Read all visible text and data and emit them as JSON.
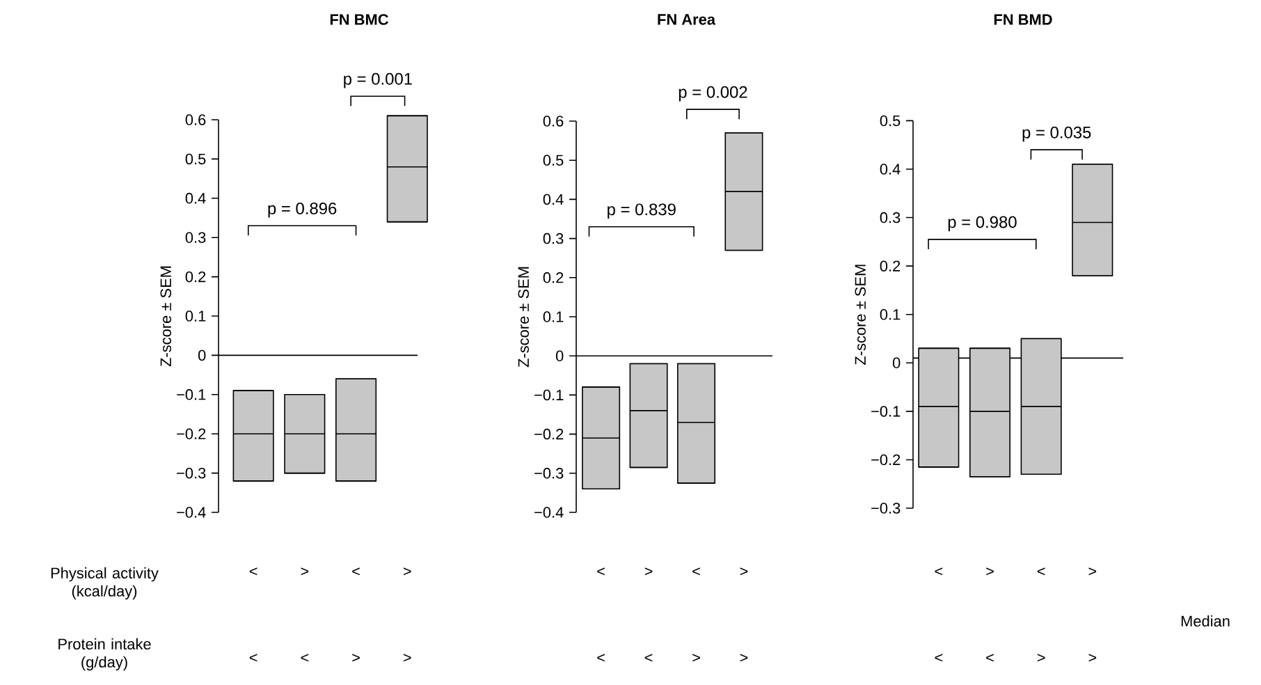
{
  "chart_data": [
    {
      "type": "box",
      "title": "FN BMC",
      "ylabel": "Z-score ± SEM",
      "categories": [
        "<",
        ">",
        "<",
        ">"
      ],
      "boxes": [
        {
          "low": -0.32,
          "q1": -0.32,
          "median": -0.2,
          "q3": -0.09,
          "high": -0.09
        },
        {
          "low": -0.3,
          "q1": -0.3,
          "median": -0.2,
          "q3": -0.1,
          "high": -0.1
        },
        {
          "low": -0.32,
          "q1": -0.32,
          "median": -0.2,
          "q3": -0.06,
          "high": -0.06
        },
        {
          "low": 0.34,
          "q1": 0.34,
          "median": 0.48,
          "q3": 0.61,
          "high": 0.61
        }
      ],
      "ylim": [
        -0.4,
        0.6
      ],
      "yticks": [
        {
          "value": -0.4,
          "label": "−0.4"
        },
        {
          "value": -0.3,
          "label": "−0.3"
        },
        {
          "value": -0.2,
          "label": "−0.2"
        },
        {
          "value": -0.1,
          "label": "−0.1"
        },
        0,
        0.1,
        0.2,
        0.3,
        0.4,
        0.5,
        0.6
      ],
      "ref_lines": [
        {
          "axis": "y",
          "value": 0
        }
      ],
      "annotations": [
        "p = 0.896",
        "p = 0.001",
        "<",
        "<",
        ">",
        ">",
        "Physical activity (kcal/day)",
        "Protein intake (g/day)"
      ]
    },
    {
      "type": "box",
      "title": "FN Area",
      "ylabel": "Z-score ± SEM",
      "categories": [
        "<",
        ">",
        "<",
        ">"
      ],
      "boxes": [
        {
          "low": -0.34,
          "q1": -0.34,
          "median": -0.21,
          "q3": -0.08,
          "high": -0.08
        },
        {
          "low": -0.285,
          "q1": -0.285,
          "median": -0.14,
          "q3": -0.02,
          "high": -0.02
        },
        {
          "low": -0.325,
          "q1": -0.325,
          "median": -0.17,
          "q3": -0.02,
          "high": -0.02
        },
        {
          "low": 0.27,
          "q1": 0.27,
          "median": 0.42,
          "q3": 0.57,
          "high": 0.57
        }
      ],
      "ylim": [
        -0.4,
        0.6
      ],
      "yticks": [
        {
          "value": -0.4,
          "label": "−0.4"
        },
        {
          "value": -0.3,
          "label": "−0.3"
        },
        {
          "value": -0.2,
          "label": "−0.2"
        },
        {
          "value": -0.1,
          "label": "−0.1"
        },
        0,
        0.1,
        0.2,
        0.3,
        0.4,
        0.5,
        0.6
      ],
      "ref_lines": [
        {
          "axis": "y",
          "value": 0
        }
      ],
      "annotations": [
        "p = 0.839",
        "p = 0.002",
        "<",
        "<",
        ">",
        ">"
      ]
    },
    {
      "type": "box",
      "title": "FN BMD",
      "ylabel": "Z-score ± SEM",
      "categories": [
        "<",
        ">",
        "<",
        ">"
      ],
      "boxes": [
        {
          "low": -0.215,
          "q1": -0.215,
          "median": -0.09,
          "q3": 0.03,
          "high": 0.03
        },
        {
          "low": -0.235,
          "q1": -0.235,
          "median": -0.1,
          "q3": 0.03,
          "high": 0.03
        },
        {
          "low": -0.23,
          "q1": -0.23,
          "median": -0.09,
          "q3": 0.05,
          "high": 0.05
        },
        {
          "low": 0.18,
          "q1": 0.18,
          "median": 0.29,
          "q3": 0.41,
          "high": 0.41
        }
      ],
      "ylim": [
        -0.3,
        0.5
      ],
      "yticks": [
        {
          "value": -0.3,
          "label": "−0.3"
        },
        {
          "value": -0.2,
          "label": "−0.2"
        },
        {
          "value": -0.1,
          "label": "−0.1"
        },
        0,
        0.1,
        0.2,
        0.3,
        0.4,
        0.5
      ],
      "ref_lines": [
        {
          "axis": "y",
          "value": 0.01
        }
      ],
      "annotations": [
        "p = 0.980",
        "p = 0.035",
        "<",
        "<",
        ">",
        ">",
        "Median"
      ]
    }
  ]
}
